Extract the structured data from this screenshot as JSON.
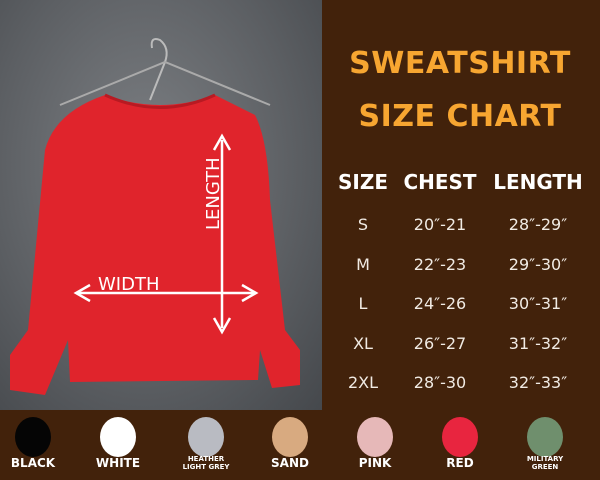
{
  "title_line1": "SWEATSHIRT",
  "title_line2": "SIZE CHART",
  "diagram": {
    "length_label": "LENGTH",
    "width_label": "WIDTH",
    "garment_color": "#e0242c"
  },
  "table": {
    "headers": [
      "SIZE",
      "CHEST",
      "LENGTH"
    ],
    "rows": [
      [
        "S",
        "20″-21",
        "28″-29″"
      ],
      [
        "M",
        "22″-23",
        "29″-30″"
      ],
      [
        "L",
        "24″-26",
        "30″-31″"
      ],
      [
        "XL",
        "26″-27",
        "31″-32″"
      ],
      [
        "2XL",
        "28″-30",
        "32″-33″"
      ]
    ]
  },
  "colors": [
    {
      "label": "BLACK",
      "hex": "#050505"
    },
    {
      "label": "WHITE",
      "hex": "#ffffff"
    },
    {
      "label": "HEATHER LIGHT GREY",
      "hex": "#b9bbc2"
    },
    {
      "label": "SAND",
      "hex": "#d8aa80"
    },
    {
      "label": "PINK",
      "hex": "#e6b8b8"
    },
    {
      "label": "RED",
      "hex": "#e8253f"
    },
    {
      "label": "MILITARY GREEN",
      "hex": "#6f8f6d"
    }
  ]
}
